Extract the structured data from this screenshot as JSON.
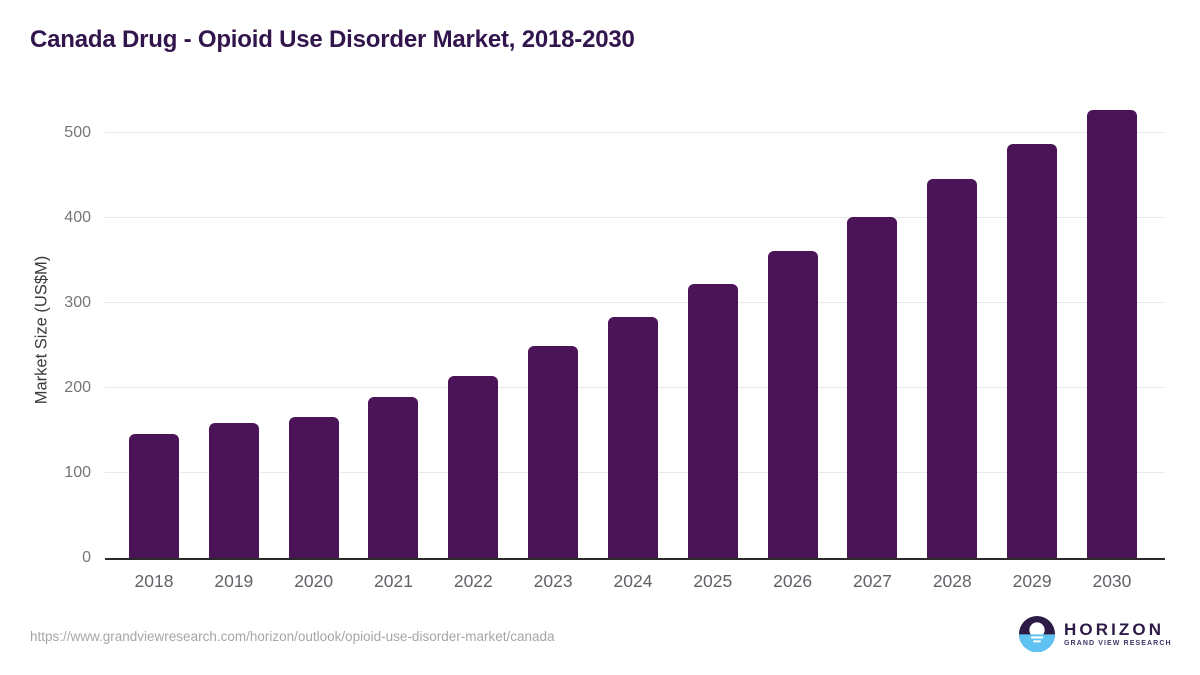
{
  "header": {
    "title": "Canada Drug - Opioid Use Disorder Market, 2018-2030"
  },
  "chart_data": {
    "type": "bar",
    "title": "Canada Drug - Opioid Use Disorder Market, 2018-2030",
    "categories": [
      "2018",
      "2019",
      "2020",
      "2021",
      "2022",
      "2023",
      "2024",
      "2025",
      "2026",
      "2027",
      "2028",
      "2029",
      "2030"
    ],
    "values": [
      146,
      159,
      166,
      189,
      214,
      249,
      284,
      322,
      361,
      401,
      446,
      487,
      527
    ],
    "xlabel": "",
    "ylabel": "Market Size (US$M)",
    "ylim": [
      0,
      541
    ],
    "yticks": [
      0,
      100,
      200,
      300,
      400,
      500
    ],
    "grid": true,
    "legend": false,
    "bar_color": "#4a1457"
  },
  "colors": {
    "title": "#33154d",
    "gridline": "#e9e9e9",
    "axis_line": "#2a2a2a",
    "ytick_label": "#757575",
    "xtick_label": "#5f6368",
    "url_text": "#a6a6a6",
    "logo_purple": "#2e1a47",
    "logo_blue": "#5ec3f0"
  },
  "footer": {
    "source_url": "https://www.grandviewresearch.com/horizon/outlook/opioid-use-disorder-market/canada",
    "logo": {
      "brand": "HORIZON",
      "sub_brand": "GRAND VIEW RESEARCH"
    }
  }
}
